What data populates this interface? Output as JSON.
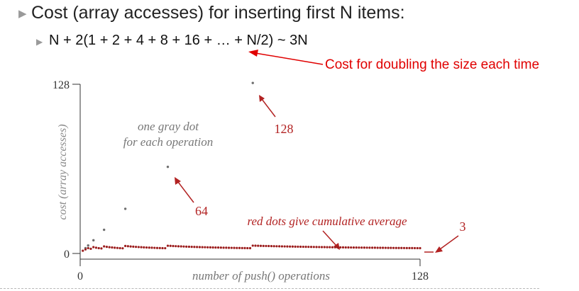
{
  "slide": {
    "bullet_main": "Cost (array accesses) for inserting first N items:",
    "bullet_sub": "N + 2(1 + 2 + 4 + 8 + 16 + … + N/2) ~ 3N",
    "callout": "Cost for doubling the size each time"
  },
  "colors": {
    "red_text": "#e00000",
    "gray_dots": "#6e6e6e",
    "red_dots": "#9b1c1c",
    "annotation_red": "#b22222"
  },
  "chart_data": {
    "type": "scatter",
    "xlabel": "number of push() operations",
    "ylabel": "cost (array accesses)",
    "xlim": [
      0,
      128
    ],
    "ylim": [
      0,
      128
    ],
    "x_ticks": [
      "0",
      "128"
    ],
    "y_ticks": [
      "0",
      "128"
    ],
    "annotations": {
      "gray_note_line1": "one gray dot",
      "gray_note_line2": "for each operation",
      "label_128": "128",
      "label_64": "64",
      "red_note": "red dots give cumulative average",
      "label_3": "3"
    },
    "gray_spikes": [
      {
        "x": 2,
        "y": 3
      },
      {
        "x": 3,
        "y": 5
      },
      {
        "x": 5,
        "y": 9
      },
      {
        "x": 9,
        "y": 17
      },
      {
        "x": 17,
        "y": 33
      },
      {
        "x": 33,
        "y": 65
      },
      {
        "x": 65,
        "y": 129
      }
    ],
    "average_steady": 3
  }
}
